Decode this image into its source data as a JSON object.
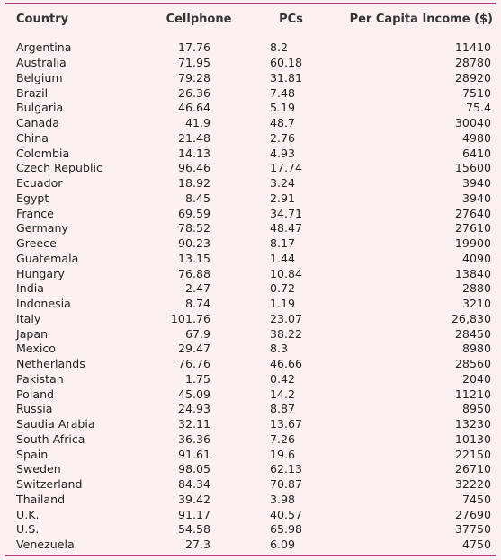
{
  "table": {
    "headers": {
      "country": "Country",
      "cellphone": "Cellphone",
      "pcs": "PCs",
      "income": "Per Capita Income ($)"
    },
    "rows": [
      {
        "country": "Argentina",
        "cellphone": "17.76",
        "pcs": "8.2",
        "income": "11410"
      },
      {
        "country": "Australia",
        "cellphone": "71.95",
        "pcs": "60.18",
        "income": "28780"
      },
      {
        "country": "Belgium",
        "cellphone": "79.28",
        "pcs": "31.81",
        "income": "28920"
      },
      {
        "country": "Brazil",
        "cellphone": "26.36",
        "pcs": "7.48",
        "income": "7510"
      },
      {
        "country": "Bulgaria",
        "cellphone": "46.64",
        "pcs": "5.19",
        "income": "75.4"
      },
      {
        "country": "Canada",
        "cellphone": "41.9",
        "pcs": "48.7",
        "income": "30040"
      },
      {
        "country": "China",
        "cellphone": "21.48",
        "pcs": "2.76",
        "income": "4980"
      },
      {
        "country": "Colombia",
        "cellphone": "14.13",
        "pcs": "4.93",
        "income": "6410"
      },
      {
        "country": "Czech Republic",
        "cellphone": "96.46",
        "pcs": "17.74",
        "income": "15600"
      },
      {
        "country": "Ecuador",
        "cellphone": "18.92",
        "pcs": "3.24",
        "income": "3940"
      },
      {
        "country": "Egypt",
        "cellphone": "8.45",
        "pcs": "2.91",
        "income": "3940"
      },
      {
        "country": "France",
        "cellphone": "69.59",
        "pcs": "34.71",
        "income": "27640"
      },
      {
        "country": "Germany",
        "cellphone": "78.52",
        "pcs": "48.47",
        "income": "27610"
      },
      {
        "country": "Greece",
        "cellphone": "90.23",
        "pcs": "8.17",
        "income": "19900"
      },
      {
        "country": "Guatemala",
        "cellphone": "13.15",
        "pcs": "1.44",
        "income": "4090"
      },
      {
        "country": "Hungary",
        "cellphone": "76.88",
        "pcs": "10.84",
        "income": "13840"
      },
      {
        "country": "India",
        "cellphone": "2.47",
        "pcs": "0.72",
        "income": "2880"
      },
      {
        "country": "Indonesia",
        "cellphone": "8.74",
        "pcs": "1.19",
        "income": "3210"
      },
      {
        "country": "Italy",
        "cellphone": "101.76",
        "pcs": "23.07",
        "income": "26,830"
      },
      {
        "country": "Japan",
        "cellphone": "67.9",
        "pcs": "38.22",
        "income": "28450"
      },
      {
        "country": "Mexico",
        "cellphone": "29.47",
        "pcs": "8.3",
        "income": "8980"
      },
      {
        "country": "Netherlands",
        "cellphone": "76.76",
        "pcs": "46.66",
        "income": "28560"
      },
      {
        "country": "Pakistan",
        "cellphone": "1.75",
        "pcs": "0.42",
        "income": "2040"
      },
      {
        "country": "Poland",
        "cellphone": "45.09",
        "pcs": "14.2",
        "income": "11210"
      },
      {
        "country": "Russia",
        "cellphone": "24.93",
        "pcs": "8.87",
        "income": "8950"
      },
      {
        "country": "Saudia Arabia",
        "cellphone": "32.11",
        "pcs": "13.67",
        "income": "13230"
      },
      {
        "country": "South Africa",
        "cellphone": "36.36",
        "pcs": "7.26",
        "income": "10130"
      },
      {
        "country": "Spain",
        "cellphone": "91.61",
        "pcs": "19.6",
        "income": "22150"
      },
      {
        "country": "Sweden",
        "cellphone": "98.05",
        "pcs": "62.13",
        "income": "26710"
      },
      {
        "country": "Switzerland",
        "cellphone": "84.34",
        "pcs": "70.87",
        "income": "32220"
      },
      {
        "country": "Thailand",
        "cellphone": "39.42",
        "pcs": "3.98",
        "income": "7450"
      },
      {
        "country": "U.K.",
        "cellphone": "91.17",
        "pcs": "40.57",
        "income": "27690"
      },
      {
        "country": "U.S.",
        "cellphone": "54.58",
        "pcs": "65.98",
        "income": "37750"
      },
      {
        "country": "Venezuela",
        "cellphone": "27.3",
        "pcs": "6.09",
        "income": "4750"
      }
    ]
  },
  "colors": {
    "background": "#fdf0f3",
    "rule": "#b23a72"
  }
}
